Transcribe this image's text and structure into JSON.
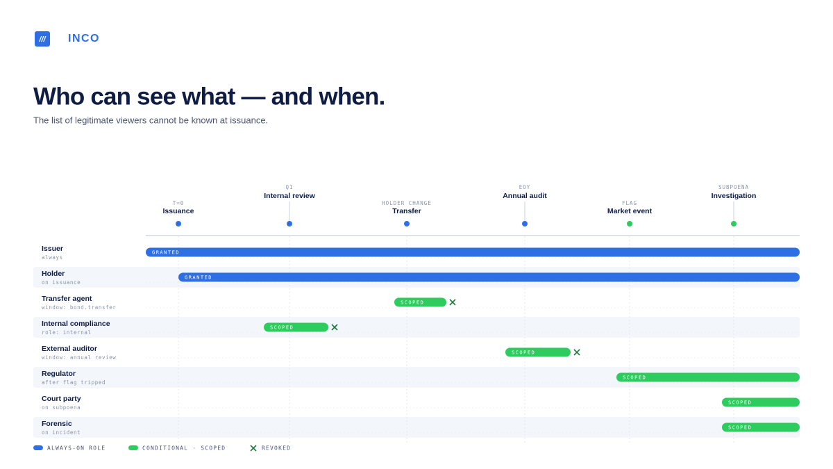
{
  "header": {
    "brand": "INCO",
    "title": "Who can see what — and when.",
    "subtitle": "The list of legitimate viewers cannot be known at issuance."
  },
  "events": [
    {
      "tag": "T=0",
      "label": "Issuance"
    },
    {
      "tag": "Q1",
      "label": "Internal review"
    },
    {
      "tag": "HOLDER CHANGE",
      "label": "Transfer"
    },
    {
      "tag": "EOY",
      "label": "Annual audit"
    },
    {
      "tag": "FLAG",
      "label": "Market event"
    },
    {
      "tag": "SUBPOENA",
      "label": "Investigation"
    }
  ],
  "rows": [
    {
      "name": "Issuer",
      "note": "always",
      "bar": "GRANTED"
    },
    {
      "name": "Holder",
      "note": "on issuance",
      "bar": "GRANTED"
    },
    {
      "name": "Transfer agent",
      "note": "window: bond.transfer",
      "bar": "SCOPED"
    },
    {
      "name": "Internal compliance",
      "note": "role: internal",
      "bar": "SCOPED"
    },
    {
      "name": "External auditor",
      "note": "window: annual review",
      "bar": "SCOPED"
    },
    {
      "name": "Regulator",
      "note": "after flag tripped",
      "bar": "SCOPED"
    },
    {
      "name": "Court party",
      "note": "on subpoena",
      "bar": "SCOPED"
    },
    {
      "name": "Forensic",
      "note": "on incident",
      "bar": "SCOPED"
    }
  ],
  "legend": [
    "ALWAYS-ON ROLE",
    "CONDITIONAL · SCOPED",
    "REVOKED"
  ]
}
